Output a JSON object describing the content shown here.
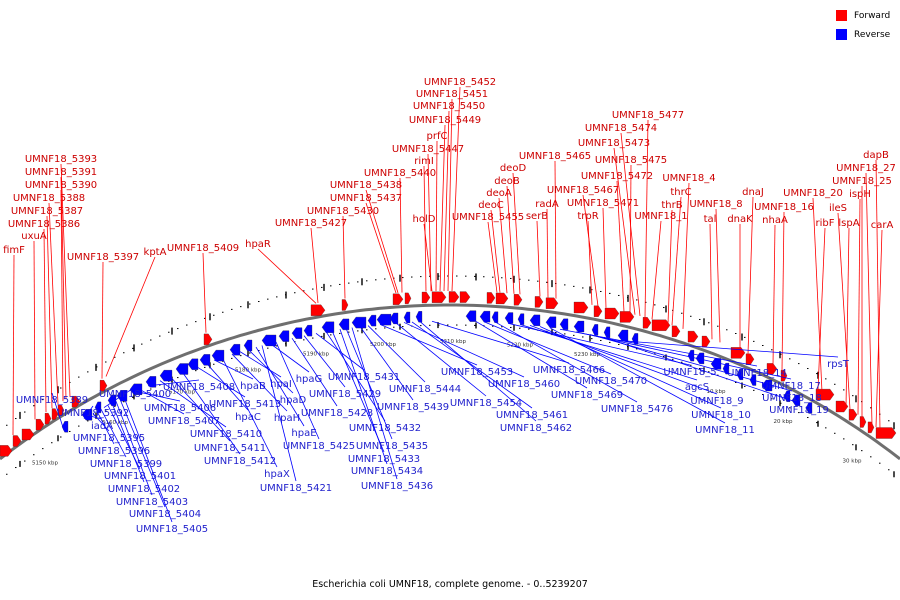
{
  "colors": {
    "forward": "#ff0000",
    "forward_label": "#cc0000",
    "reverse": "#0000ff",
    "reverse_label": "#1f1fcc",
    "backbone": "#6f6f6f",
    "tick": "#000000"
  },
  "legend": [
    {
      "label": "Forward",
      "color": "#ff0000"
    },
    {
      "label": "Reverse",
      "color": "#0000ff"
    }
  ],
  "caption": "Escherichia coli UMNF18, complete genome. - 0..5239207",
  "scale_labels": [
    "5150 kbp",
    "5160 kbp",
    "5170 kbp",
    "5180 kbp",
    "5190 kbp",
    "5200 kbp",
    "5210 kbp",
    "5220 kbp",
    "5230 kbp",
    "10 kbp",
    "20 kbp",
    "30 kbp"
  ],
  "forward_labels": [
    "fimF",
    "uxuA",
    "UMNF18_5386",
    "UMNF18_5387",
    "UMNF18_5388",
    "UMNF18_5390",
    "UMNF18_5391",
    "UMNF18_5393",
    "UMNF18_5397",
    "kptA",
    "UMNF18_5409",
    "hpaR",
    "UMNF18_5427",
    "UMNF18_5430",
    "UMNF18_5437",
    "UMNF18_5438",
    "UMNF18_5440",
    "rimI",
    "UMNF18_5447",
    "prfC",
    "UMNF18_5449",
    "UMNF18_5450",
    "UMNF18_5451",
    "UMNF18_5452",
    "holD",
    "UMNF18_5455",
    "deoC",
    "deoA",
    "deoB",
    "deoD",
    "serB",
    "radA",
    "UMNF18_5465",
    "trpR",
    "UMNF18_5471",
    "UMNF18_5467",
    "UMNF18_5472",
    "UMNF18_5475",
    "UMNF18_5473",
    "UMNF18_5474",
    "UMNF18_5477",
    "UMNF18_1",
    "thrB",
    "thrC",
    "UMNF18_4",
    "tal",
    "UMNF18_8",
    "dnaK",
    "dnaJ",
    "nhaA",
    "UMNF18_16",
    "ribF",
    "UMNF18_20",
    "lspA",
    "ileS",
    "ispH",
    "UMNF18_25",
    "carA",
    "UMNF18_27",
    "dapB"
  ],
  "reverse_labels": [
    "UMNF18_5389",
    "UMNF18_5392",
    "iadA",
    "UMNF18_5395",
    "UMNF18_5396",
    "UMNF18_5399",
    "UMNF18_5400",
    "UMNF18_5401",
    "UMNF18_5402",
    "UMNF18_5403",
    "UMNF18_5404",
    "UMNF18_5405",
    "UMNF18_5406",
    "UMNF18_5407",
    "UMNF18_5408",
    "UMNF18_5410",
    "UMNF18_5411",
    "UMNF18_5412",
    "UMNF18_5413",
    "hpaC",
    "hpaB",
    "hpaX",
    "hpaH",
    "hpaI",
    "hpaD",
    "hpaE",
    "UMNF18_5421",
    "hpaG",
    "UMNF18_5425",
    "UMNF18_5428",
    "UMNF18_5429",
    "UMNF18_5431",
    "UMNF18_5432",
    "UMNF18_5433",
    "UMNF18_5434",
    "UMNF18_5435",
    "UMNF18_5436",
    "UMNF18_5439",
    "UMNF18_5444",
    "UMNF18_5453",
    "UMNF18_5454",
    "UMNF18_5460",
    "UMNF18_5461",
    "UMNF18_5462",
    "UMNF18_5466",
    "UMNF18_5469",
    "UMNF18_5470",
    "UMNF18_5476",
    "UMNF18_5",
    "agcS",
    "UMNF18_9",
    "UMNF18_10",
    "UMNF18_11",
    "UMNF18_14",
    "UMNF18_17",
    "UMNF18_18",
    "UMNF18_19",
    "rpsT"
  ]
}
